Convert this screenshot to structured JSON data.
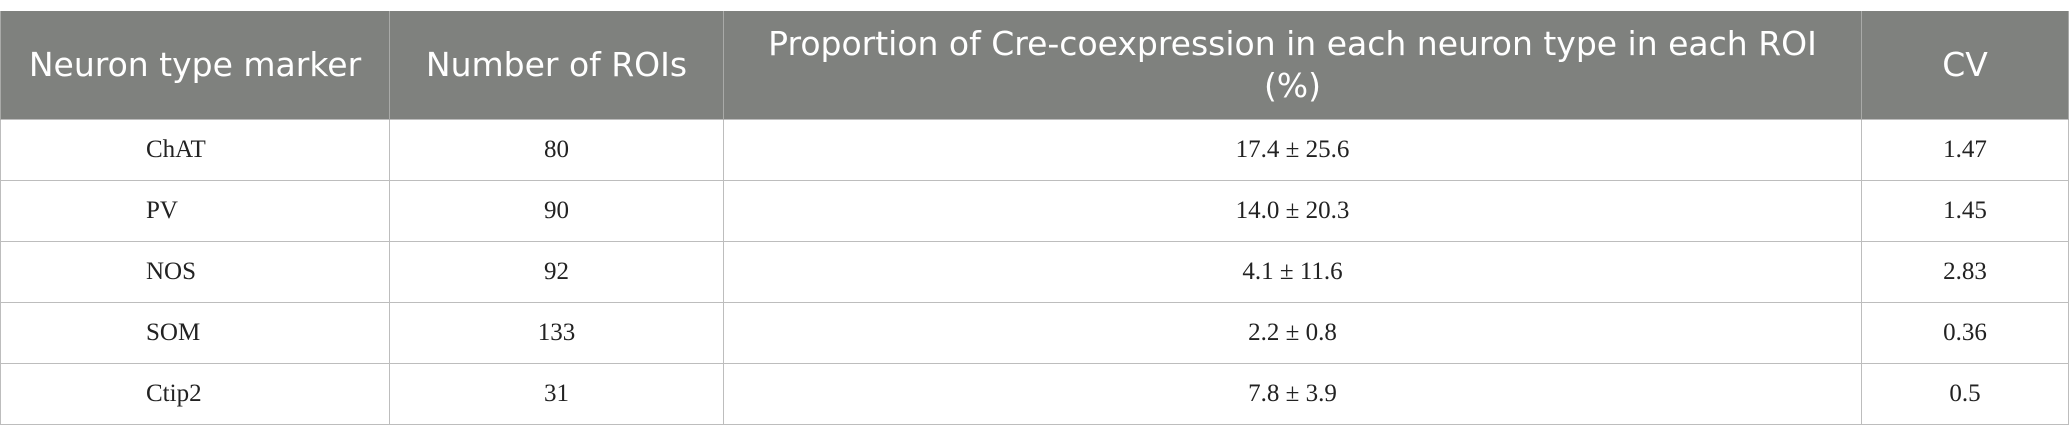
{
  "table": {
    "columns": [
      "Neuron type marker",
      "Number of ROIs",
      "Proportion of Cre-coexpression in each neuron type in each ROI (%)",
      "CV"
    ],
    "rows": [
      [
        "ChAT",
        "80",
        "17.4 ± 25.6",
        "1.47"
      ],
      [
        "PV",
        "90",
        "14.0 ± 20.3",
        "1.45"
      ],
      [
        "NOS",
        "92",
        "4.1 ± 11.6",
        "2.83"
      ],
      [
        "SOM",
        "133",
        "2.2 ± 0.8",
        "0.36"
      ],
      [
        "Ctip2",
        "31",
        "7.8 ± 3.9",
        "0.5"
      ]
    ]
  }
}
